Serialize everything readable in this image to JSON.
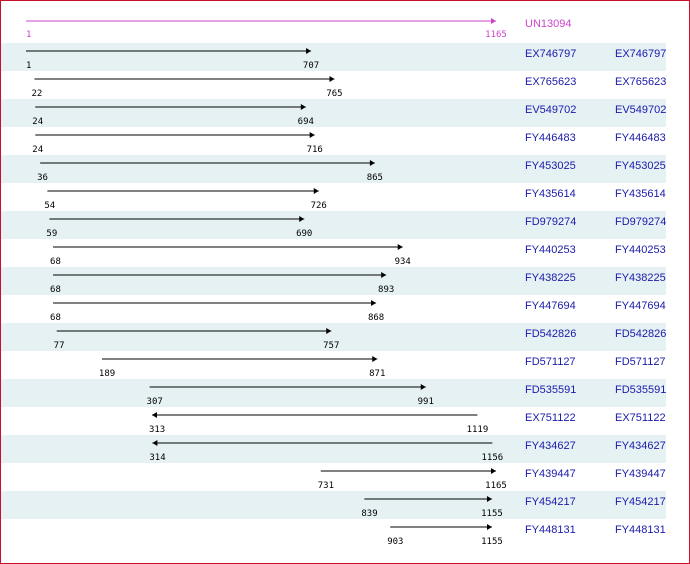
{
  "colors": {
    "frame": "#c8102e",
    "row_band": "#e6f1f4",
    "reference": "#cc44cc",
    "accession_link": "#1a1aaa",
    "arrow": "#000000",
    "coordinate_text": "#000000"
  },
  "scale": {
    "min": 1,
    "max": 1165
  },
  "reference": {
    "id": "UN13094",
    "start": 1,
    "end": 1165,
    "start_label": "1",
    "end_label": "1165"
  },
  "alignments": [
    {
      "id": "EX746797",
      "link": "EX746797",
      "start": 1,
      "end": 707,
      "start_label": "1",
      "end_label": "707",
      "direction": "forward"
    },
    {
      "id": "EX765623",
      "link": "EX765623",
      "start": 22,
      "end": 765,
      "start_label": "22",
      "end_label": "765",
      "direction": "forward"
    },
    {
      "id": "EV549702",
      "link": "EV549702",
      "start": 24,
      "end": 694,
      "start_label": "24",
      "end_label": "694",
      "direction": "forward"
    },
    {
      "id": "FY446483",
      "link": "FY446483",
      "start": 24,
      "end": 716,
      "start_label": "24",
      "end_label": "716",
      "direction": "forward"
    },
    {
      "id": "FY453025",
      "link": "FY453025",
      "start": 36,
      "end": 865,
      "start_label": "36",
      "end_label": "865",
      "direction": "forward"
    },
    {
      "id": "FY435614",
      "link": "FY435614",
      "start": 54,
      "end": 726,
      "start_label": "54",
      "end_label": "726",
      "direction": "forward"
    },
    {
      "id": "FD979274",
      "link": "FD979274",
      "start": 59,
      "end": 690,
      "start_label": "59",
      "end_label": "690",
      "direction": "forward"
    },
    {
      "id": "FY440253",
      "link": "FY440253",
      "start": 68,
      "end": 934,
      "start_label": "68",
      "end_label": "934",
      "direction": "forward"
    },
    {
      "id": "FY438225",
      "link": "FY438225",
      "start": 68,
      "end": 893,
      "start_label": "68",
      "end_label": "893",
      "direction": "forward"
    },
    {
      "id": "FY447694",
      "link": "FY447694",
      "start": 68,
      "end": 868,
      "start_label": "68",
      "end_label": "868",
      "direction": "forward"
    },
    {
      "id": "FD542826",
      "link": "FD542826",
      "start": 77,
      "end": 757,
      "start_label": "77",
      "end_label": "757",
      "direction": "forward"
    },
    {
      "id": "FD571127",
      "link": "FD571127",
      "start": 189,
      "end": 871,
      "start_label": "189",
      "end_label": "871",
      "direction": "forward"
    },
    {
      "id": "FD535591",
      "link": "FD535591",
      "start": 307,
      "end": 991,
      "start_label": "307",
      "end_label": "991",
      "direction": "forward"
    },
    {
      "id": "EX751122",
      "link": "EX751122",
      "start": 313,
      "end": 1119,
      "start_label": "313",
      "end_label": "1119",
      "direction": "reverse"
    },
    {
      "id": "FY434627",
      "link": "FY434627",
      "start": 314,
      "end": 1156,
      "start_label": "314",
      "end_label": "1156",
      "direction": "reverse"
    },
    {
      "id": "FY439447",
      "link": "FY439447",
      "start": 731,
      "end": 1165,
      "start_label": "731",
      "end_label": "1165",
      "direction": "forward"
    },
    {
      "id": "FY454217",
      "link": "FY454217",
      "start": 839,
      "end": 1155,
      "start_label": "839",
      "end_label": "1155",
      "direction": "forward"
    },
    {
      "id": "FY448131",
      "link": "FY448131",
      "start": 903,
      "end": 1155,
      "start_label": "903",
      "end_label": "1155",
      "direction": "forward"
    }
  ]
}
